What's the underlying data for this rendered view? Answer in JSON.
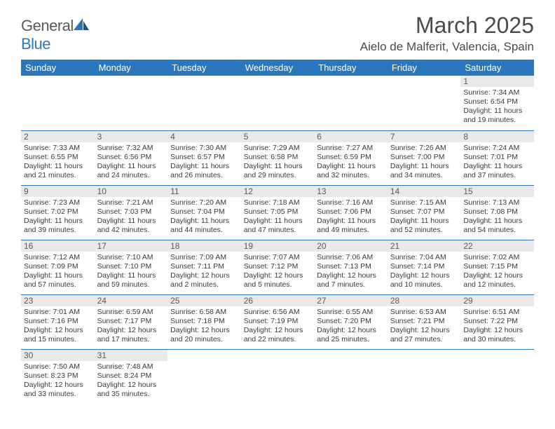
{
  "brand": {
    "part1": "General",
    "part2": "Blue"
  },
  "title": "March 2025",
  "location": "Aielo de Malferit, Valencia, Spain",
  "columns": [
    "Sunday",
    "Monday",
    "Tuesday",
    "Wednesday",
    "Thursday",
    "Friday",
    "Saturday"
  ],
  "colors": {
    "header_bg": "#2b77bd",
    "header_fg": "#ffffff",
    "daynum_bg": "#e9e9e9",
    "text": "#333333"
  },
  "weeks": [
    [
      {
        "empty": true
      },
      {
        "empty": true
      },
      {
        "empty": true
      },
      {
        "empty": true
      },
      {
        "empty": true
      },
      {
        "empty": true
      },
      {
        "day": "1",
        "sunrise": "Sunrise: 7:34 AM",
        "sunset": "Sunset: 6:54 PM",
        "day1": "Daylight: 11 hours",
        "day2": "and 19 minutes."
      }
    ],
    [
      {
        "day": "2",
        "sunrise": "Sunrise: 7:33 AM",
        "sunset": "Sunset: 6:55 PM",
        "day1": "Daylight: 11 hours",
        "day2": "and 21 minutes."
      },
      {
        "day": "3",
        "sunrise": "Sunrise: 7:32 AM",
        "sunset": "Sunset: 6:56 PM",
        "day1": "Daylight: 11 hours",
        "day2": "and 24 minutes."
      },
      {
        "day": "4",
        "sunrise": "Sunrise: 7:30 AM",
        "sunset": "Sunset: 6:57 PM",
        "day1": "Daylight: 11 hours",
        "day2": "and 26 minutes."
      },
      {
        "day": "5",
        "sunrise": "Sunrise: 7:29 AM",
        "sunset": "Sunset: 6:58 PM",
        "day1": "Daylight: 11 hours",
        "day2": "and 29 minutes."
      },
      {
        "day": "6",
        "sunrise": "Sunrise: 7:27 AM",
        "sunset": "Sunset: 6:59 PM",
        "day1": "Daylight: 11 hours",
        "day2": "and 32 minutes."
      },
      {
        "day": "7",
        "sunrise": "Sunrise: 7:26 AM",
        "sunset": "Sunset: 7:00 PM",
        "day1": "Daylight: 11 hours",
        "day2": "and 34 minutes."
      },
      {
        "day": "8",
        "sunrise": "Sunrise: 7:24 AM",
        "sunset": "Sunset: 7:01 PM",
        "day1": "Daylight: 11 hours",
        "day2": "and 37 minutes."
      }
    ],
    [
      {
        "day": "9",
        "sunrise": "Sunrise: 7:23 AM",
        "sunset": "Sunset: 7:02 PM",
        "day1": "Daylight: 11 hours",
        "day2": "and 39 minutes."
      },
      {
        "day": "10",
        "sunrise": "Sunrise: 7:21 AM",
        "sunset": "Sunset: 7:03 PM",
        "day1": "Daylight: 11 hours",
        "day2": "and 42 minutes."
      },
      {
        "day": "11",
        "sunrise": "Sunrise: 7:20 AM",
        "sunset": "Sunset: 7:04 PM",
        "day1": "Daylight: 11 hours",
        "day2": "and 44 minutes."
      },
      {
        "day": "12",
        "sunrise": "Sunrise: 7:18 AM",
        "sunset": "Sunset: 7:05 PM",
        "day1": "Daylight: 11 hours",
        "day2": "and 47 minutes."
      },
      {
        "day": "13",
        "sunrise": "Sunrise: 7:16 AM",
        "sunset": "Sunset: 7:06 PM",
        "day1": "Daylight: 11 hours",
        "day2": "and 49 minutes."
      },
      {
        "day": "14",
        "sunrise": "Sunrise: 7:15 AM",
        "sunset": "Sunset: 7:07 PM",
        "day1": "Daylight: 11 hours",
        "day2": "and 52 minutes."
      },
      {
        "day": "15",
        "sunrise": "Sunrise: 7:13 AM",
        "sunset": "Sunset: 7:08 PM",
        "day1": "Daylight: 11 hours",
        "day2": "and 54 minutes."
      }
    ],
    [
      {
        "day": "16",
        "sunrise": "Sunrise: 7:12 AM",
        "sunset": "Sunset: 7:09 PM",
        "day1": "Daylight: 11 hours",
        "day2": "and 57 minutes."
      },
      {
        "day": "17",
        "sunrise": "Sunrise: 7:10 AM",
        "sunset": "Sunset: 7:10 PM",
        "day1": "Daylight: 11 hours",
        "day2": "and 59 minutes."
      },
      {
        "day": "18",
        "sunrise": "Sunrise: 7:09 AM",
        "sunset": "Sunset: 7:11 PM",
        "day1": "Daylight: 12 hours",
        "day2": "and 2 minutes."
      },
      {
        "day": "19",
        "sunrise": "Sunrise: 7:07 AM",
        "sunset": "Sunset: 7:12 PM",
        "day1": "Daylight: 12 hours",
        "day2": "and 5 minutes."
      },
      {
        "day": "20",
        "sunrise": "Sunrise: 7:06 AM",
        "sunset": "Sunset: 7:13 PM",
        "day1": "Daylight: 12 hours",
        "day2": "and 7 minutes."
      },
      {
        "day": "21",
        "sunrise": "Sunrise: 7:04 AM",
        "sunset": "Sunset: 7:14 PM",
        "day1": "Daylight: 12 hours",
        "day2": "and 10 minutes."
      },
      {
        "day": "22",
        "sunrise": "Sunrise: 7:02 AM",
        "sunset": "Sunset: 7:15 PM",
        "day1": "Daylight: 12 hours",
        "day2": "and 12 minutes."
      }
    ],
    [
      {
        "day": "23",
        "sunrise": "Sunrise: 7:01 AM",
        "sunset": "Sunset: 7:16 PM",
        "day1": "Daylight: 12 hours",
        "day2": "and 15 minutes."
      },
      {
        "day": "24",
        "sunrise": "Sunrise: 6:59 AM",
        "sunset": "Sunset: 7:17 PM",
        "day1": "Daylight: 12 hours",
        "day2": "and 17 minutes."
      },
      {
        "day": "25",
        "sunrise": "Sunrise: 6:58 AM",
        "sunset": "Sunset: 7:18 PM",
        "day1": "Daylight: 12 hours",
        "day2": "and 20 minutes."
      },
      {
        "day": "26",
        "sunrise": "Sunrise: 6:56 AM",
        "sunset": "Sunset: 7:19 PM",
        "day1": "Daylight: 12 hours",
        "day2": "and 22 minutes."
      },
      {
        "day": "27",
        "sunrise": "Sunrise: 6:55 AM",
        "sunset": "Sunset: 7:20 PM",
        "day1": "Daylight: 12 hours",
        "day2": "and 25 minutes."
      },
      {
        "day": "28",
        "sunrise": "Sunrise: 6:53 AM",
        "sunset": "Sunset: 7:21 PM",
        "day1": "Daylight: 12 hours",
        "day2": "and 27 minutes."
      },
      {
        "day": "29",
        "sunrise": "Sunrise: 6:51 AM",
        "sunset": "Sunset: 7:22 PM",
        "day1": "Daylight: 12 hours",
        "day2": "and 30 minutes."
      }
    ],
    [
      {
        "day": "30",
        "sunrise": "Sunrise: 7:50 AM",
        "sunset": "Sunset: 8:23 PM",
        "day1": "Daylight: 12 hours",
        "day2": "and 33 minutes."
      },
      {
        "day": "31",
        "sunrise": "Sunrise: 7:48 AM",
        "sunset": "Sunset: 8:24 PM",
        "day1": "Daylight: 12 hours",
        "day2": "and 35 minutes."
      },
      {
        "empty": true
      },
      {
        "empty": true
      },
      {
        "empty": true
      },
      {
        "empty": true
      },
      {
        "empty": true
      }
    ]
  ]
}
